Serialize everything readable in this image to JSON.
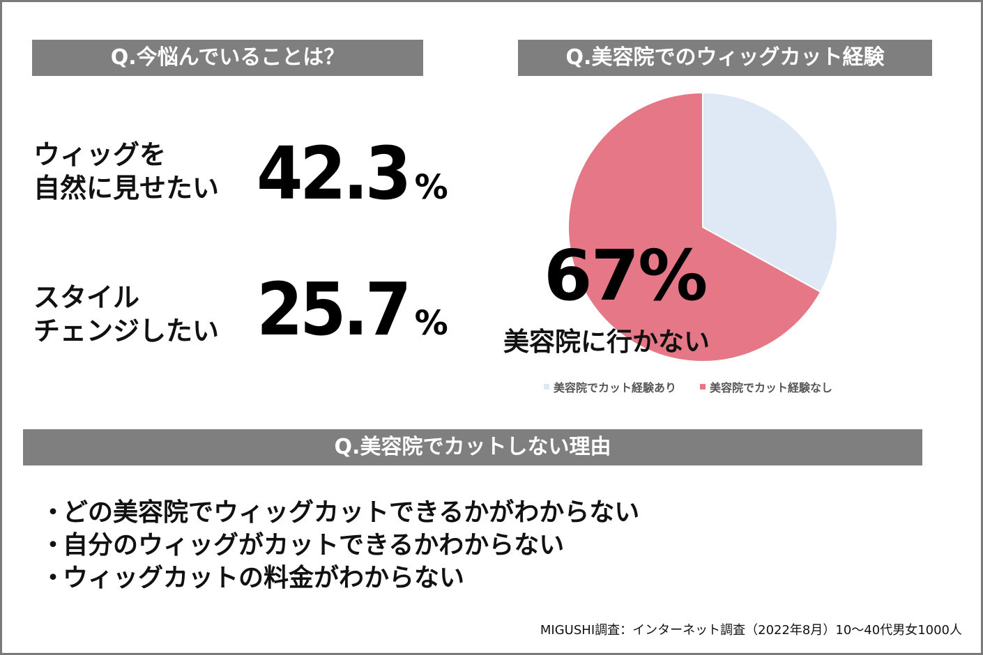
{
  "left_panel": {
    "title": "Q.今悩んでいることは？",
    "stats": [
      {
        "label_line1": "ウィッグを",
        "label_line2": "自然に見せたい",
        "value": "42.3",
        "unit": "%"
      },
      {
        "label_line1": "スタイル",
        "label_line2": "チェンジしたい",
        "value": "25.7",
        "unit": "%"
      }
    ]
  },
  "right_panel": {
    "title": "Q.美容院でのウィッグカット経験",
    "callout_value": "67%",
    "callout_label": "美容院に行かない"
  },
  "chart_data": {
    "type": "pie",
    "title": "Q.美容院でのウィッグカット経験",
    "start_angle_deg": 0,
    "direction": "clockwise",
    "series": [
      {
        "name": "美容院でカット経験あり",
        "value": 33,
        "color": "#dfe9f5"
      },
      {
        "name": "美容院でカット経験なし",
        "value": 67,
        "color": "#e57787"
      }
    ],
    "legend_position": "bottom"
  },
  "bottom_panel": {
    "title": "Q.美容院でカットしない理由",
    "bullet": "・",
    "reasons": [
      "どの美容院でウィッグカットできるかがわからない",
      "自分のウィッグがカットできるかわからない",
      "ウィッグカットの料金がわからない"
    ]
  },
  "source": "MIGUSHI調査：インターネット調査（2022年8月）10〜40代男女1000人"
}
